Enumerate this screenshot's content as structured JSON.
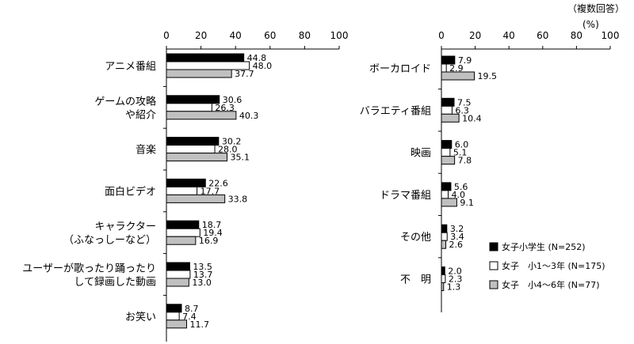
{
  "notes": {
    "multi_answer": "（複数回答）",
    "percent": "(%)"
  },
  "chart_data": [
    {
      "type": "bar",
      "orientation": "horizontal",
      "xlim": [
        0,
        100
      ],
      "ticks": [
        0,
        20,
        40,
        60,
        80,
        100
      ],
      "categories": [
        [
          "アニメ番組"
        ],
        [
          "ゲームの攻略",
          "や紹介"
        ],
        [
          "音楽"
        ],
        [
          "面白ビデオ"
        ],
        [
          "キャラクター",
          "（ふなっしーなど）"
        ],
        [
          "ユーザーが歌ったり踊ったり",
          "して録画した動画"
        ],
        [
          "お笑い"
        ]
      ],
      "series": [
        {
          "name": "女子小学生 (N=252)",
          "color": "#000000",
          "values": [
            44.8,
            30.6,
            30.2,
            22.6,
            18.7,
            13.5,
            8.7
          ]
        },
        {
          "name": "女子　小1～3年 (N=175)",
          "color": "#ffffff",
          "values": [
            48.0,
            26.3,
            28.0,
            17.7,
            19.4,
            13.7,
            7.4
          ]
        },
        {
          "name": "女子　小4～6年 (N=77)",
          "color": "#c0c0c0",
          "values": [
            37.7,
            40.3,
            35.1,
            33.8,
            16.9,
            13.0,
            11.7
          ]
        }
      ]
    },
    {
      "type": "bar",
      "orientation": "horizontal",
      "xlim": [
        0,
        100
      ],
      "ticks": [
        0,
        20,
        40,
        60,
        80,
        100
      ],
      "categories": [
        [
          "ボーカロイド"
        ],
        [
          "バラエティ番組"
        ],
        [
          "映画"
        ],
        [
          "ドラマ番組"
        ],
        [
          "その他"
        ],
        [
          "不　明"
        ]
      ],
      "series": [
        {
          "name": "女子小学生 (N=252)",
          "color": "#000000",
          "values": [
            7.9,
            7.5,
            6.0,
            5.6,
            3.2,
            2.0
          ]
        },
        {
          "name": "女子　小1～3年 (N=175)",
          "color": "#ffffff",
          "values": [
            2.9,
            6.3,
            5.1,
            4.0,
            3.4,
            2.3
          ]
        },
        {
          "name": "女子　小4～6年 (N=77)",
          "color": "#c0c0c0",
          "values": [
            19.5,
            10.4,
            7.8,
            9.1,
            2.6,
            1.3
          ]
        }
      ]
    }
  ],
  "legend": {
    "items": [
      "女子小学生 (N=252)",
      "女子　小1～3年 (N=175)",
      "女子　小4～6年 (N=77)"
    ],
    "placement": "bottom-right"
  }
}
